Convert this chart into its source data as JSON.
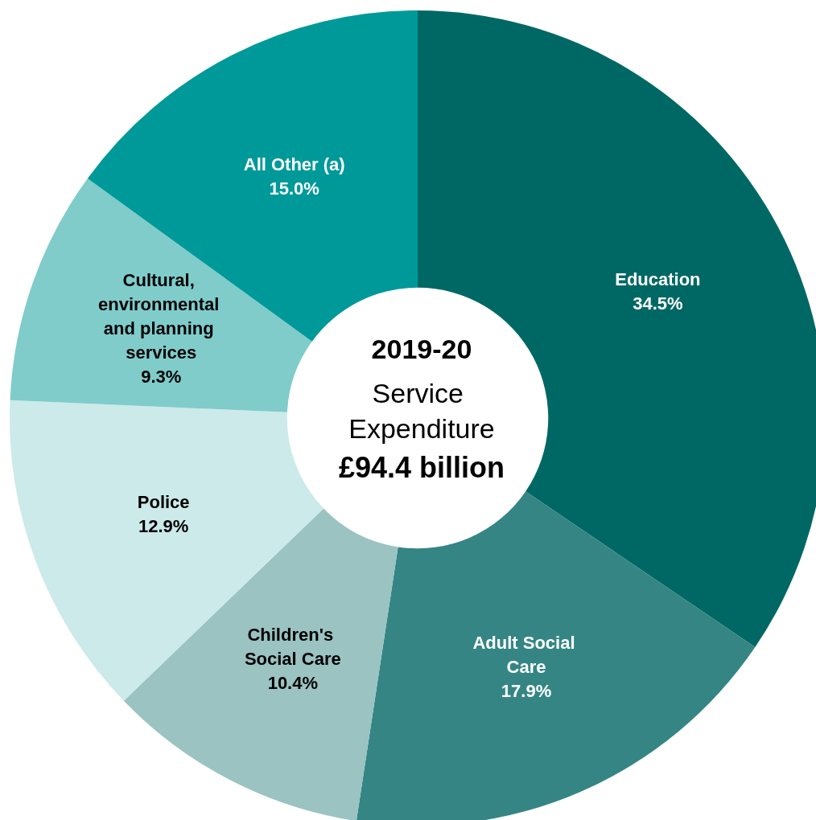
{
  "chart_data": {
    "type": "donut",
    "title": "2019-20",
    "subtitle": "Service Expenditure",
    "annotations": [
      "£94.4 billion"
    ],
    "categories": [
      "Education",
      "Adult Social Care",
      "Children's Social Care",
      "Police",
      "Cultural, environmental and planning services",
      "All Other (a)"
    ],
    "values": [
      34.5,
      17.9,
      10.4,
      12.9,
      9.3,
      15.0
    ],
    "value_labels": [
      "34.5%",
      "17.9%",
      "10.4%",
      "12.9%",
      "9.3%",
      "15.0%"
    ],
    "colors": [
      "#006864",
      "#358585",
      "#9ac3c2",
      "#cbeae9",
      "#7fcccb",
      "#009999"
    ],
    "legend": false
  }
}
